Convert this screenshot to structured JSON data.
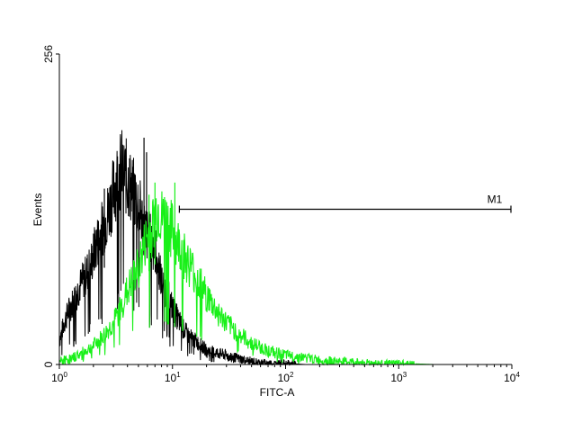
{
  "chart_data": {
    "type": "histogram",
    "xlabel": "FITC-A",
    "ylabel": "Events",
    "x_scale": "log",
    "xlim": [
      1,
      10000
    ],
    "ylim": [
      0,
      256
    ],
    "x_ticks": [
      {
        "value": 1,
        "base": "10",
        "exp": "0"
      },
      {
        "value": 10,
        "base": "10",
        "exp": "1"
      },
      {
        "value": 100,
        "base": "10",
        "exp": "2"
      },
      {
        "value": 1000,
        "base": "10",
        "exp": "3"
      },
      {
        "value": 10000,
        "base": "10",
        "exp": "4"
      }
    ],
    "y_ticks": [
      {
        "value": 0,
        "label": "0"
      },
      {
        "value": 256,
        "label": "256"
      }
    ],
    "gate": {
      "label": "M1",
      "x_start": 11.5,
      "x_end": 10000,
      "y": 128
    },
    "series": [
      {
        "color": "#000000",
        "x": [
          1.0,
          1.1,
          1.2,
          1.35,
          1.5,
          1.7,
          1.9,
          2.1,
          2.4,
          2.7,
          3.0,
          3.3,
          3.6,
          4.0,
          4.5,
          5.0,
          5.5,
          6.0,
          6.5,
          7.0,
          7.5,
          8.0,
          9.0,
          10.0,
          11.0,
          12.5,
          14.0,
          16.0,
          18.0,
          20.0,
          25.0,
          30.0,
          40.0,
          50.0,
          60.0,
          80.0,
          100.0,
          150.0,
          200.0
        ],
        "y": [
          20,
          35,
          45,
          55,
          65,
          75,
          85,
          100,
          115,
          128,
          145,
          160,
          165,
          155,
          145,
          135,
          118,
          108,
          105,
          98,
          85,
          70,
          60,
          48,
          40,
          30,
          24,
          20,
          16,
          12,
          10,
          8,
          5,
          3,
          2,
          1,
          1,
          0,
          0
        ],
        "spikes": [
          {
            "x": 5.6,
            "y": 187
          },
          {
            "x": 5.9,
            "y": 175
          },
          {
            "x": 4.5,
            "y": 163
          },
          {
            "x": 2.5,
            "y": 145
          }
        ]
      },
      {
        "color": "#18f018",
        "x": [
          1.0,
          1.3,
          1.6,
          2.0,
          2.5,
          3.0,
          3.5,
          4.0,
          4.5,
          5.0,
          5.5,
          6.0,
          6.5,
          7.0,
          7.5,
          8.0,
          9.0,
          10.0,
          11.0,
          12.0,
          13.0,
          15.0,
          17.0,
          20.0,
          25.0,
          30.0,
          40.0,
          50.0,
          70.0,
          100.0,
          150.0,
          200.0,
          300.0,
          500.0,
          700.0,
          1000.0,
          2000.0,
          5000.0,
          10000.0
        ],
        "y": [
          3,
          6,
          10,
          16,
          25,
          35,
          48,
          62,
          72,
          82,
          95,
          108,
          112,
          125,
          130,
          122,
          120,
          112,
          102,
          98,
          90,
          80,
          70,
          58,
          44,
          35,
          25,
          18,
          12,
          8,
          6,
          4,
          3,
          2,
          1,
          1,
          0,
          0,
          0
        ],
        "spikes": [
          {
            "x": 7.0,
            "y": 150
          },
          {
            "x": 10.5,
            "y": 150
          },
          {
            "x": 8.5,
            "y": 138
          },
          {
            "x": 6.2,
            "y": 140
          }
        ]
      }
    ]
  }
}
